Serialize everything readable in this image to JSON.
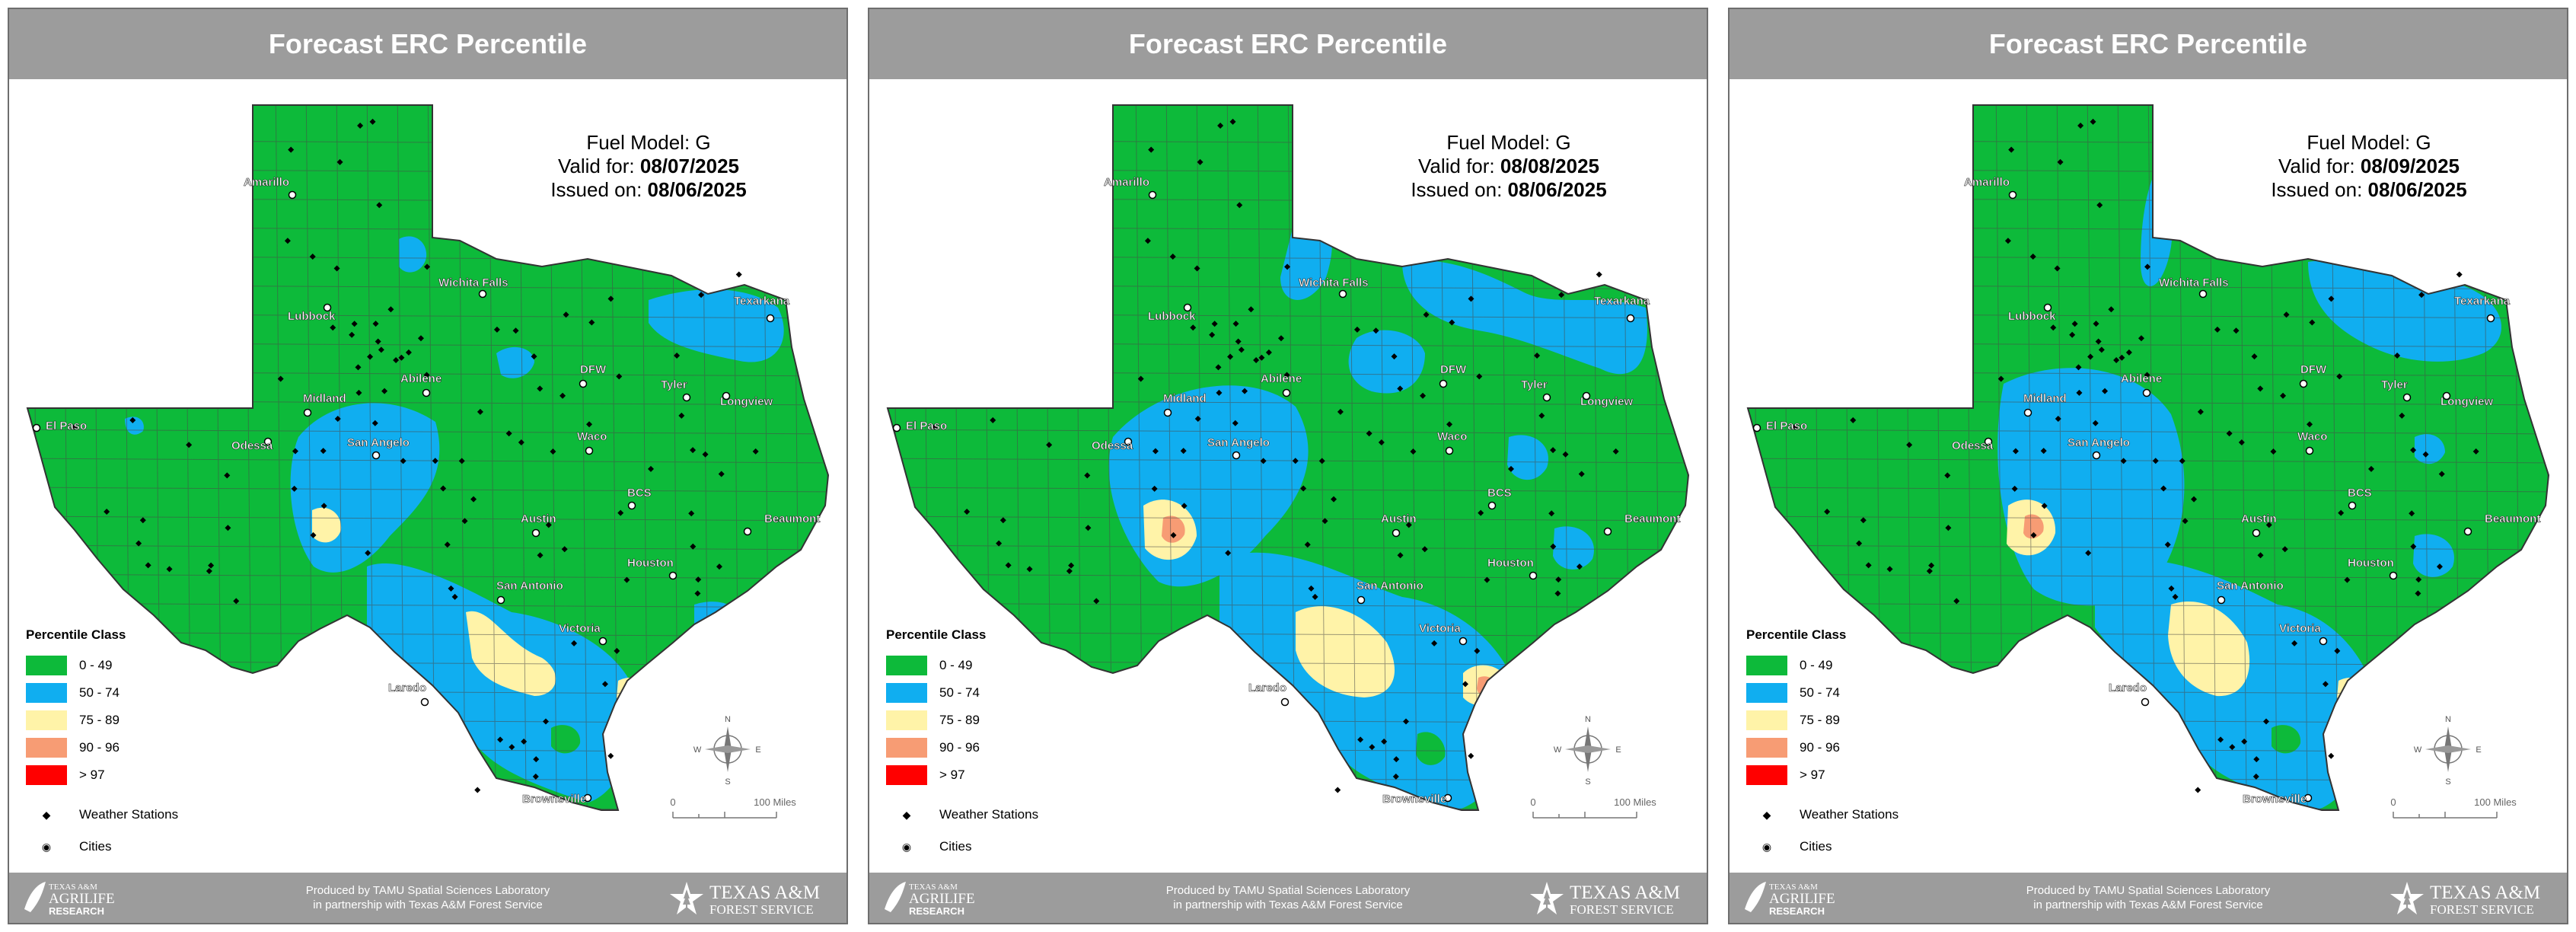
{
  "panels": [
    {
      "title": "Forecast ERC Percentile",
      "fuel_model": "Fuel Model: G",
      "valid_label": "Valid for: ",
      "valid_date": "08/07/2025",
      "issued_label": "Issued on: ",
      "issued_date": "08/06/2025"
    },
    {
      "title": "Forecast ERC Percentile",
      "fuel_model": "Fuel Model: G",
      "valid_label": "Valid for: ",
      "valid_date": "08/08/2025",
      "issued_label": "Issued on: ",
      "issued_date": "08/06/2025"
    },
    {
      "title": "Forecast ERC Percentile",
      "fuel_model": "Fuel Model: G",
      "valid_label": "Valid for: ",
      "valid_date": "08/09/2025",
      "issued_label": "Issued on: ",
      "issued_date": "08/06/2025"
    }
  ],
  "legend": {
    "title": "Percentile Class",
    "classes": [
      {
        "label": "0 - 49",
        "color": "#0dba3a"
      },
      {
        "label": "50 - 74",
        "color": "#10aef0"
      },
      {
        "label": "75 - 89",
        "color": "#fff3a8"
      },
      {
        "label": "90 - 96",
        "color": "#f79c74"
      },
      {
        "label": "> 97",
        "color": "#ff0000"
      }
    ],
    "symbols": [
      {
        "label": "Weather Stations",
        "symbol": "◆"
      },
      {
        "label": "Cities",
        "symbol": "◉"
      }
    ]
  },
  "cities": [
    "Amarillo",
    "Lubbock",
    "Wichita Falls",
    "Texarkana",
    "El Paso",
    "Midland",
    "Odessa",
    "Abilene",
    "DFW",
    "Tyler",
    "Longview",
    "San Angelo",
    "Waco",
    "BCS",
    "Austin",
    "Beaumont",
    "Houston",
    "San Antonio",
    "Victoria",
    "Laredo",
    "Brownsville"
  ],
  "scale": {
    "zero": "0",
    "label": "100 Miles"
  },
  "compass": {
    "n": "N",
    "s": "S",
    "e": "E",
    "w": "W"
  },
  "footer": {
    "logo_left_line1": "TEXAS A&M",
    "logo_left_line2": "AGRILIFE",
    "logo_left_line3": "RESEARCH",
    "credit_line1": "Produced by TAMU Spatial Sciences Laboratory",
    "credit_line2": "in partnership with Texas A&M Forest Service",
    "logo_right_line1": "TEXAS A&M",
    "logo_right_line2": "FOREST SERVICE"
  }
}
